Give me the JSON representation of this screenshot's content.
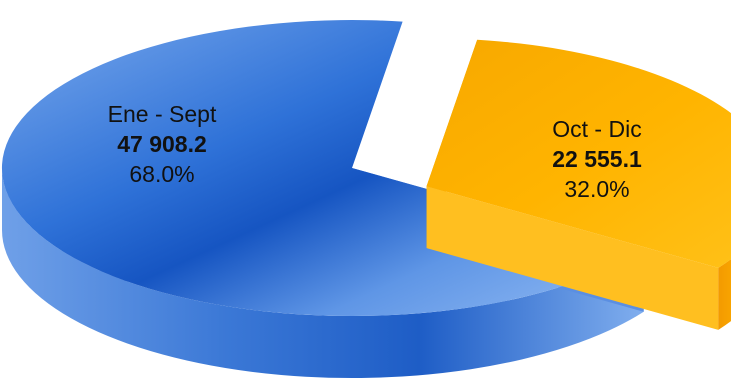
{
  "chart_data": {
    "type": "pie",
    "style": "3d-exploded",
    "slices": [
      {
        "label": "Ene - Sept",
        "value": 47908.2,
        "value_text": "47 908.2",
        "percent_text": "68.0%",
        "color": "#2f6fd0"
      },
      {
        "label": "Oct - Dic",
        "value": 22555.1,
        "value_text": "22 555.1",
        "percent_text": "32.0%",
        "color": "#f5a300"
      }
    ],
    "legend": "none"
  }
}
